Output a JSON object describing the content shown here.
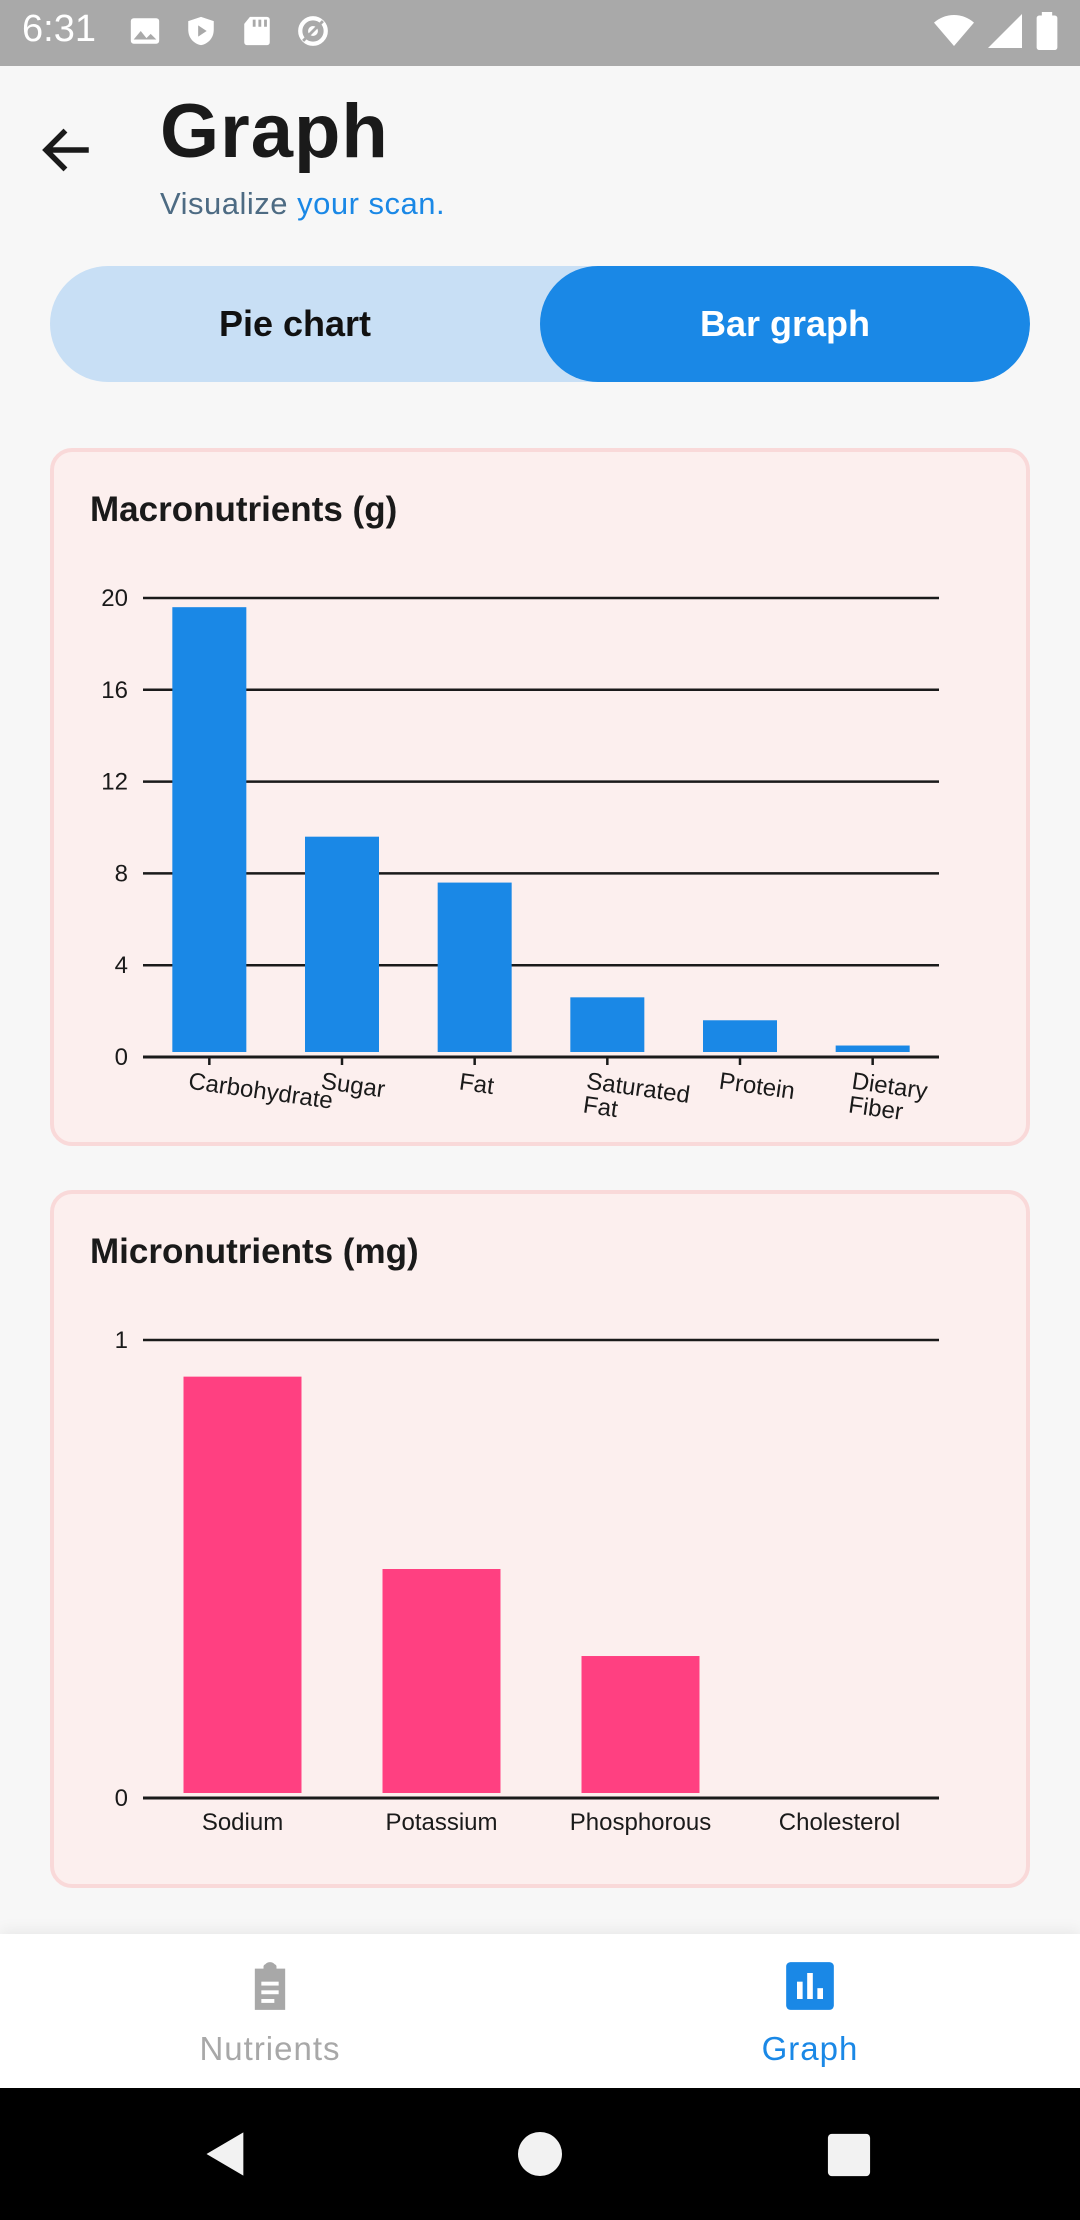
{
  "status_bar": {
    "time": "6:31"
  },
  "header": {
    "title": "Graph",
    "subtitle_prefix": "Visualize ",
    "subtitle_accent": "your scan."
  },
  "toggle": {
    "options": [
      "Pie chart",
      "Bar graph"
    ],
    "selected": "Bar graph"
  },
  "colors": {
    "accent": "#1a88e6",
    "macro_bar": "#1a88e6",
    "micro_bar": "#ff4081",
    "card_bg": "#fcefee"
  },
  "chart_data": [
    {
      "type": "bar",
      "title": "Macronutrients (g)",
      "categories": [
        "Carbohydrate",
        "Sugar",
        "Fat",
        "Saturated Fat",
        "Protein",
        "Dietary Fiber"
      ],
      "values": [
        19.6,
        9.6,
        7.6,
        2.6,
        1.6,
        0.5
      ],
      "yticks": [
        "0",
        "4",
        "8",
        "12",
        "16",
        "20"
      ],
      "ylim": [
        0,
        20
      ],
      "grid": true,
      "color": "#1a88e6"
    },
    {
      "type": "bar",
      "title": "Micronutrients (mg)",
      "categories": [
        "Sodium",
        "Potassium",
        "Phosphorous",
        "Cholesterol"
      ],
      "values": [
        0.92,
        0.5,
        0.31,
        0
      ],
      "yticks": [
        "0",
        "1"
      ],
      "ylim": [
        0,
        1
      ],
      "grid": true,
      "color": "#ff4081"
    }
  ],
  "bottom_nav": {
    "items": [
      {
        "label": "Nutrients",
        "icon": "clipboard-icon",
        "active": false
      },
      {
        "label": "Graph",
        "icon": "bar-chart-icon",
        "active": true
      }
    ]
  }
}
